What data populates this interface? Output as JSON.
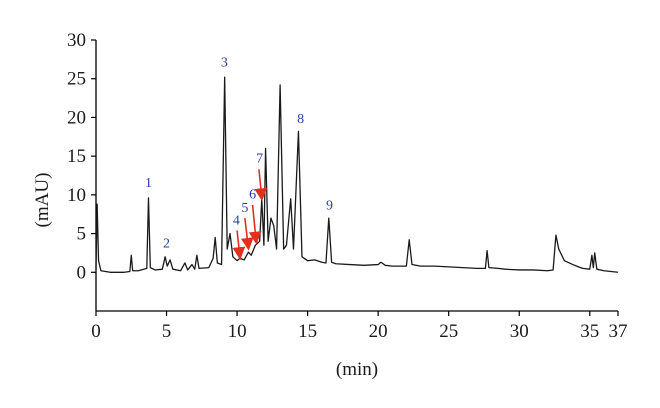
{
  "chart_data": {
    "type": "line",
    "title": "",
    "xlabel": "(min)",
    "ylabel": "(mAU)",
    "xlim": [
      0,
      37
    ],
    "ylim": [
      -5,
      30
    ],
    "x_ticks": [
      0,
      5,
      10,
      15,
      20,
      25,
      30,
      35,
      37
    ],
    "y_ticks": [
      0,
      5,
      10,
      15,
      20,
      25,
      30
    ],
    "grid": false,
    "colors": {
      "trace": "#1a1a1a",
      "peak_label": "#2a3f9d",
      "arrow": "#e0301e",
      "axis": "#000000"
    },
    "series": [
      {
        "points": [
          [
            0.0,
            0.5
          ],
          [
            0.08,
            8.8
          ],
          [
            0.18,
            1.5
          ],
          [
            0.35,
            0.2
          ],
          [
            1.0,
            0.0
          ],
          [
            2.0,
            0.0
          ],
          [
            2.4,
            0.1
          ],
          [
            2.5,
            2.2
          ],
          [
            2.6,
            0.2
          ],
          [
            3.0,
            0.2
          ],
          [
            3.6,
            0.5
          ],
          [
            3.72,
            9.6
          ],
          [
            3.85,
            0.6
          ],
          [
            4.2,
            0.3
          ],
          [
            4.7,
            0.4
          ],
          [
            4.9,
            2.0
          ],
          [
            5.05,
            0.8
          ],
          [
            5.25,
            1.6
          ],
          [
            5.45,
            0.4
          ],
          [
            6.0,
            0.2
          ],
          [
            6.3,
            1.2
          ],
          [
            6.5,
            0.3
          ],
          [
            6.8,
            1.0
          ],
          [
            7.0,
            0.4
          ],
          [
            7.15,
            2.2
          ],
          [
            7.3,
            0.5
          ],
          [
            8.0,
            0.6
          ],
          [
            8.3,
            1.8
          ],
          [
            8.45,
            4.5
          ],
          [
            8.6,
            1.2
          ],
          [
            8.9,
            1.0
          ],
          [
            9.12,
            25.2
          ],
          [
            9.3,
            3.0
          ],
          [
            9.5,
            5.0
          ],
          [
            9.7,
            2.0
          ],
          [
            10.0,
            1.5
          ],
          [
            10.2,
            1.8
          ],
          [
            10.5,
            1.6
          ],
          [
            10.8,
            2.6
          ],
          [
            11.0,
            2.2
          ],
          [
            11.3,
            3.5
          ],
          [
            11.6,
            4.0
          ],
          [
            11.75,
            9.5
          ],
          [
            11.9,
            3.5
          ],
          [
            12.02,
            16.0
          ],
          [
            12.2,
            4.0
          ],
          [
            12.4,
            7.0
          ],
          [
            12.6,
            6.0
          ],
          [
            12.8,
            3.0
          ],
          [
            13.05,
            24.2
          ],
          [
            13.3,
            3.0
          ],
          [
            13.5,
            3.5
          ],
          [
            13.8,
            9.5
          ],
          [
            14.0,
            3.0
          ],
          [
            14.35,
            18.2
          ],
          [
            14.6,
            2.0
          ],
          [
            15.0,
            1.5
          ],
          [
            15.5,
            1.6
          ],
          [
            16.0,
            1.3
          ],
          [
            16.3,
            1.2
          ],
          [
            16.5,
            7.0
          ],
          [
            16.7,
            1.3
          ],
          [
            17.0,
            1.1
          ],
          [
            18.0,
            1.0
          ],
          [
            19.0,
            0.9
          ],
          [
            20.0,
            1.0
          ],
          [
            20.2,
            1.3
          ],
          [
            20.5,
            0.9
          ],
          [
            21.0,
            0.8
          ],
          [
            22.0,
            0.8
          ],
          [
            22.2,
            4.2
          ],
          [
            22.4,
            1.0
          ],
          [
            23.0,
            0.8
          ],
          [
            24.0,
            0.8
          ],
          [
            25.0,
            0.7
          ],
          [
            26.0,
            0.6
          ],
          [
            27.0,
            0.5
          ],
          [
            27.6,
            0.5
          ],
          [
            27.72,
            2.8
          ],
          [
            27.85,
            0.6
          ],
          [
            28.5,
            0.5
          ],
          [
            29.0,
            0.4
          ],
          [
            30.0,
            0.3
          ],
          [
            31.0,
            0.3
          ],
          [
            32.0,
            0.2
          ],
          [
            32.4,
            0.3
          ],
          [
            32.6,
            4.8
          ],
          [
            32.8,
            3.0
          ],
          [
            33.2,
            1.5
          ],
          [
            33.8,
            1.0
          ],
          [
            34.2,
            0.7
          ],
          [
            34.5,
            0.5
          ],
          [
            35.0,
            0.4
          ],
          [
            35.15,
            2.2
          ],
          [
            35.25,
            0.6
          ],
          [
            35.35,
            2.5
          ],
          [
            35.5,
            0.4
          ],
          [
            36.0,
            0.2
          ],
          [
            37.0,
            0.0
          ]
        ]
      }
    ],
    "peak_labels": [
      {
        "text": "1",
        "x": 3.72,
        "y": 11.0
      },
      {
        "text": "2",
        "x": 5.0,
        "y": 3.2
      },
      {
        "text": "3",
        "x": 9.1,
        "y": 26.6
      },
      {
        "text": "4",
        "x": 9.95,
        "y": 6.2
      },
      {
        "text": "5",
        "x": 10.55,
        "y": 7.8
      },
      {
        "text": "6",
        "x": 11.1,
        "y": 9.5
      },
      {
        "text": "7",
        "x": 11.6,
        "y": 14.2
      },
      {
        "text": "8",
        "x": 14.5,
        "y": 19.3
      },
      {
        "text": "9",
        "x": 16.55,
        "y": 8.1
      }
    ],
    "arrows": [
      {
        "points_to": "4",
        "from": [
          10.0,
          5.4
        ],
        "to": [
          10.2,
          2.0
        ]
      },
      {
        "points_to": "5",
        "from": [
          10.55,
          7.0
        ],
        "to": [
          10.8,
          3.2
        ]
      },
      {
        "points_to": "6",
        "from": [
          11.1,
          8.7
        ],
        "to": [
          11.35,
          4.0
        ]
      },
      {
        "points_to": "7",
        "from": [
          11.55,
          13.3
        ],
        "to": [
          11.75,
          9.6
        ]
      }
    ]
  }
}
